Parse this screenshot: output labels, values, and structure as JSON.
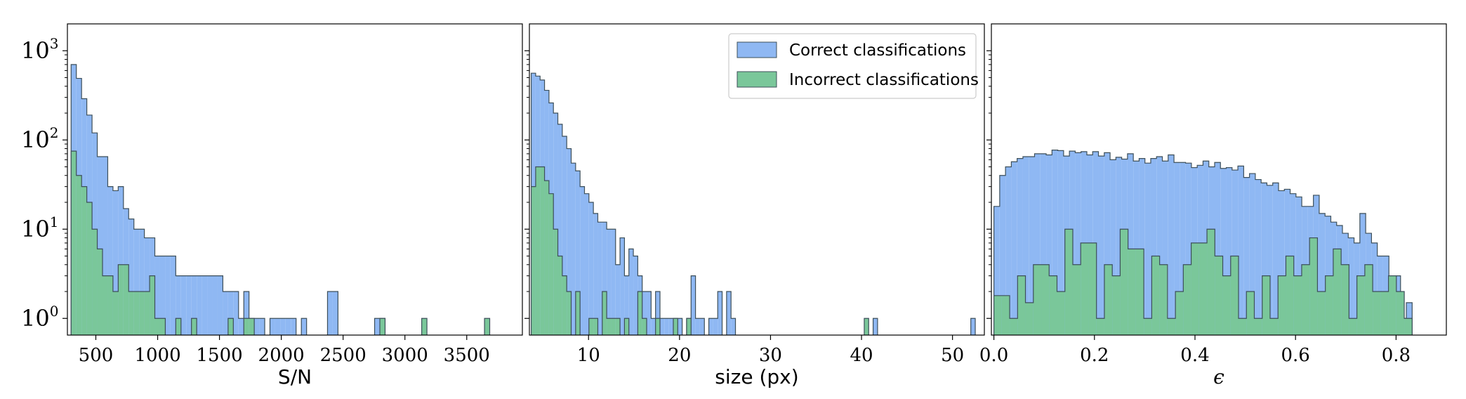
{
  "colors": {
    "correct_fill": "#8fb8f3",
    "incorrect_fill": "#7ac79a",
    "edge": "#3d4f5a"
  },
  "legend": {
    "placement": "top-right of middle panel",
    "items": [
      {
        "label": "Correct classifications",
        "color": "#8fb8f3"
      },
      {
        "label": "Incorrect classifications",
        "color": "#7ac79a"
      }
    ]
  },
  "shared_y": {
    "scale": "log",
    "ylim": [
      0.65,
      2000
    ],
    "ticks": [
      1,
      10,
      100,
      1000
    ],
    "tick_labels": [
      [
        "10",
        "0"
      ],
      [
        "10",
        "1"
      ],
      [
        "10",
        "2"
      ],
      [
        "10",
        "3"
      ]
    ]
  },
  "chart_data": [
    {
      "type": "histogram",
      "xlabel": "S/N",
      "xlim": [
        270,
        3950
      ],
      "xticks": [
        500,
        1000,
        1500,
        2000,
        2500,
        3000,
        3500
      ],
      "xtick_labels": [
        "500",
        "1000",
        "1500",
        "2000",
        "2500",
        "3000",
        "3500"
      ],
      "yscale": "log",
      "series": [
        {
          "name": "Correct classifications",
          "color": "#8fb8f3",
          "edges": [
            300,
            3686
          ],
          "counts": [
            700,
            490,
            290,
            190,
            120,
            65,
            65,
            30,
            27,
            30,
            17,
            13,
            10,
            10,
            8,
            8,
            5,
            5,
            5,
            5,
            3,
            3,
            3,
            3,
            3,
            3,
            3,
            3,
            3,
            2,
            2,
            2,
            1,
            2,
            1,
            1,
            1,
            0,
            1,
            1,
            1,
            1,
            1,
            0,
            1,
            0,
            0,
            0,
            0,
            2,
            2,
            0,
            0,
            0,
            0,
            0,
            0,
            0,
            1,
            1,
            0,
            0,
            0,
            0,
            0,
            0,
            0,
            0,
            0,
            0,
            0,
            0,
            0,
            0,
            0,
            0,
            0,
            0,
            0,
            0
          ]
        },
        {
          "name": "Incorrect classifications",
          "color": "#7ac79a",
          "edges": [
            300,
            3686
          ],
          "counts": [
            75,
            40,
            30,
            20,
            10,
            6,
            3,
            3,
            2,
            4,
            4,
            2,
            2,
            2,
            2,
            3,
            1,
            1,
            0,
            0,
            1,
            0,
            0,
            1,
            0,
            0,
            0,
            0,
            0,
            0,
            1,
            0,
            0,
            1,
            1,
            0,
            0,
            0,
            0,
            0,
            0,
            0,
            0,
            0,
            0,
            0,
            0,
            0,
            0,
            0,
            0,
            0,
            0,
            0,
            0,
            0,
            0,
            0,
            0,
            1,
            0,
            0,
            0,
            0,
            0,
            0,
            0,
            1,
            0,
            0,
            0,
            0,
            0,
            0,
            0,
            0,
            0,
            0,
            0,
            1
          ]
        }
      ]
    },
    {
      "type": "histogram",
      "xlabel": "size  (px)",
      "xlim": [
        3.5,
        53.5
      ],
      "xticks": [
        10,
        20,
        30,
        40,
        50
      ],
      "xtick_labels": [
        "10",
        "20",
        "30",
        "40",
        "50"
      ],
      "yscale": "log",
      "series": [
        {
          "name": "Correct classifications",
          "color": "#8fb8f3",
          "edges": [
            3.7,
            52.5
          ],
          "counts": [
            560,
            520,
            470,
            360,
            260,
            200,
            150,
            110,
            80,
            55,
            45,
            30,
            25,
            20,
            15,
            12,
            12,
            10,
            10,
            4,
            8,
            3,
            6,
            5,
            3,
            2,
            2,
            1,
            2,
            1,
            1,
            1,
            1,
            1,
            0,
            1,
            3,
            1,
            1,
            0,
            1,
            1,
            2,
            0,
            2,
            1,
            0,
            0,
            0,
            0,
            0,
            0,
            0,
            0,
            0,
            0,
            0,
            0,
            0,
            0,
            0,
            0,
            0,
            0,
            0,
            0,
            0,
            0,
            0,
            0,
            0,
            0,
            0,
            0,
            0,
            0,
            0,
            1,
            0,
            0,
            0,
            0,
            0,
            0,
            0,
            0,
            0,
            0,
            0,
            0,
            0,
            0,
            0,
            0,
            0,
            0,
            0,
            0,
            0,
            1
          ]
        },
        {
          "name": "Incorrect classifications",
          "color": "#7ac79a",
          "edges": [
            3.7,
            52.5
          ],
          "counts": [
            30,
            50,
            50,
            35,
            25,
            10,
            5,
            3,
            2,
            0,
            2,
            0,
            0,
            1,
            1,
            0,
            2,
            1,
            1,
            1,
            0,
            1,
            0,
            0,
            2,
            1,
            0,
            0,
            1,
            0,
            0,
            0,
            1,
            0,
            0,
            1,
            0,
            0,
            0,
            0,
            0,
            0,
            0,
            0,
            0,
            0,
            0,
            0,
            0,
            0,
            0,
            0,
            0,
            0,
            0,
            0,
            0,
            0,
            0,
            0,
            0,
            0,
            0,
            0,
            0,
            0,
            0,
            0,
            0,
            0,
            0,
            0,
            0,
            0,
            0,
            1,
            0,
            0,
            0,
            0,
            0,
            0,
            0,
            0,
            0,
            0,
            0,
            0,
            0,
            0,
            0,
            0,
            0,
            0,
            0,
            0,
            0,
            0,
            0,
            0
          ]
        }
      ]
    },
    {
      "type": "histogram",
      "xlabel": "ϵ",
      "xlim": [
        -0.005,
        0.9
      ],
      "xticks": [
        0.0,
        0.2,
        0.4,
        0.6,
        0.8
      ],
      "xtick_labels": [
        "0.0",
        "0.2",
        "0.4",
        "0.6",
        "0.8"
      ],
      "yscale": "log",
      "series": [
        {
          "name": "Correct classifications",
          "color": "#8fb8f3",
          "edges": [
            0.0,
            0.832
          ],
          "counts": [
            18,
            40,
            50,
            57,
            62,
            65,
            65,
            70,
            70,
            68,
            77,
            76,
            66,
            75,
            72,
            74,
            68,
            74,
            66,
            72,
            60,
            64,
            61,
            70,
            58,
            62,
            55,
            62,
            65,
            58,
            68,
            56,
            56,
            55,
            49,
            52,
            58,
            50,
            56,
            48,
            49,
            46,
            51,
            38,
            42,
            36,
            33,
            31,
            33,
            27,
            28,
            25,
            23,
            18,
            18,
            24,
            15,
            14,
            12,
            11,
            9,
            8,
            7,
            15,
            9,
            7,
            5,
            5,
            3,
            3,
            1,
            1.5
          ]
        },
        {
          "name": "Incorrect classifications",
          "color": "#7ac79a",
          "edges": [
            0.0,
            0.832
          ],
          "counts": [
            1.8,
            1.8,
            1,
            3,
            1.5,
            4,
            4,
            3,
            2,
            10,
            4,
            7,
            7,
            1,
            4,
            3,
            10,
            6,
            6,
            1,
            5,
            4,
            1,
            2,
            4,
            7,
            7,
            10,
            5,
            3,
            5,
            1,
            2,
            1,
            3,
            1,
            3,
            5,
            3,
            4,
            8,
            2,
            3,
            6,
            4,
            1,
            3,
            4,
            2,
            2,
            3,
            2,
            1
          ]
        }
      ]
    }
  ]
}
